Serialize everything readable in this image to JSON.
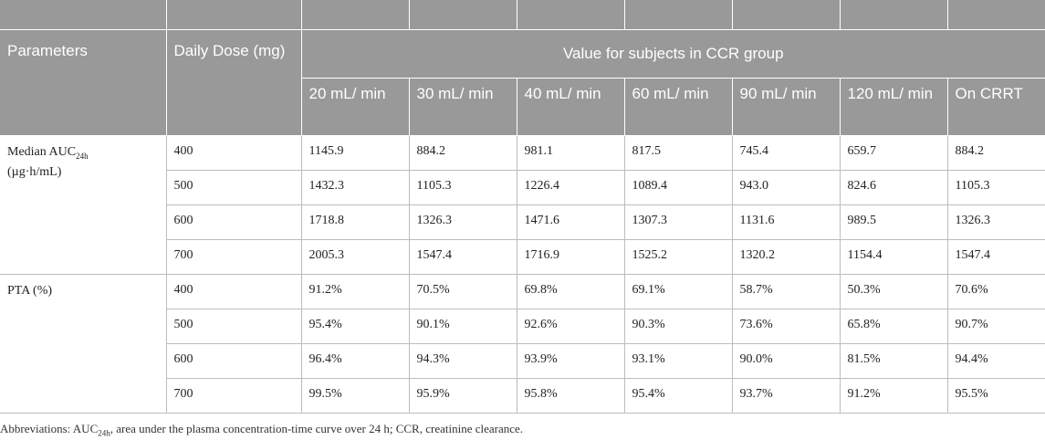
{
  "header": {
    "parameters": "Parameters",
    "daily_dose": "Daily Dose (mg)",
    "group_title": "Value for subjects in CCR group",
    "subgroups": [
      "20 mL/ min",
      "30 mL/ min",
      "40 mL/ min",
      "60 mL/ min",
      "90 mL/ min",
      "120 mL/ min",
      "On CRRT"
    ]
  },
  "sections": [
    {
      "label_main": "Median AUC",
      "label_sub": "24h",
      "label_tail": "(µg·h/mL)",
      "rows": [
        {
          "dose": "400",
          "values": [
            "1145.9",
            "884.2",
            "981.1",
            "817.5",
            "745.4",
            "659.7",
            "884.2"
          ]
        },
        {
          "dose": "500",
          "values": [
            "1432.3",
            "1105.3",
            "1226.4",
            "1089.4",
            "943.0",
            "824.6",
            "1105.3"
          ]
        },
        {
          "dose": "600",
          "values": [
            "1718.8",
            "1326.3",
            "1471.6",
            "1307.3",
            "1131.6",
            "989.5",
            "1326.3"
          ]
        },
        {
          "dose": "700",
          "values": [
            "2005.3",
            "1547.4",
            "1716.9",
            "1525.2",
            "1320.2",
            "1154.4",
            "1547.4"
          ]
        }
      ]
    },
    {
      "label_main": "PTA (%)",
      "rows": [
        {
          "dose": "400",
          "values": [
            "91.2%",
            "70.5%",
            "69.8%",
            "69.1%",
            "58.7%",
            "50.3%",
            "70.6%"
          ]
        },
        {
          "dose": "500",
          "values": [
            "95.4%",
            "90.1%",
            "92.6%",
            "90.3%",
            "73.6%",
            "65.8%",
            "90.7%"
          ]
        },
        {
          "dose": "600",
          "values": [
            "96.4%",
            "94.3%",
            "93.9%",
            "93.1%",
            "90.0%",
            "81.5%",
            "94.4%"
          ]
        },
        {
          "dose": "700",
          "values": [
            "99.5%",
            "95.9%",
            "95.8%",
            "95.4%",
            "93.7%",
            "91.2%",
            "95.5%"
          ]
        }
      ]
    }
  ],
  "footnote": {
    "prefix": "Abbreviations: AUC",
    "sub": "24h",
    "rest": ", area under the plasma concentration-time curve over 24 h; CCR, creatinine clearance."
  }
}
